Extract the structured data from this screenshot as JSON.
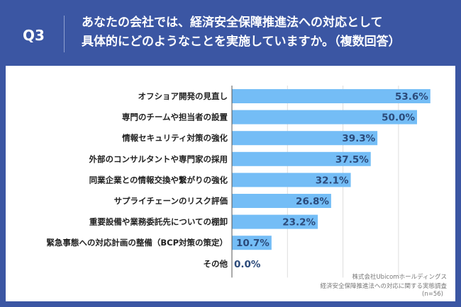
{
  "header": {
    "question": "Q3",
    "title_line1": "あなたの会社では、経済安全保障推進法への対応として",
    "title_line2": "具体的にどのようなことを実施していますか。（複数回答）"
  },
  "source": {
    "company": "株式会社Ubicomホールディングス",
    "survey": "経済安全保障推進法への対応に関する実態調査",
    "n": "(n=56)"
  },
  "colors": {
    "header": "#3b56a3",
    "bar": "#74bdf6",
    "value": "#2b4a7a"
  },
  "chart_data": {
    "type": "bar",
    "orientation": "horizontal",
    "categories": [
      "オフショア開発の見直し",
      "専門のチームや担当者の設置",
      "情報セキュリティ対策の強化",
      "外部のコンサルタントや専門家の採用",
      "同業企業との情報交換や繋がりの強化",
      "サプライチェーンのリスク評価",
      "重要設備や業務委託先についての棚卸",
      "緊急事態への対応計画の整備（BCP対策の策定）",
      "その他"
    ],
    "values": [
      53.6,
      50.0,
      39.3,
      37.5,
      32.1,
      26.8,
      23.2,
      10.7,
      0.0
    ],
    "labels": [
      "53.6%",
      "50.0%",
      "39.3%",
      "37.5%",
      "32.1%",
      "26.8%",
      "23.2%",
      "10.7%",
      "0.0%"
    ],
    "xlim": [
      0,
      60
    ],
    "gridlines": [
      15,
      30,
      45
    ],
    "grid": true
  }
}
